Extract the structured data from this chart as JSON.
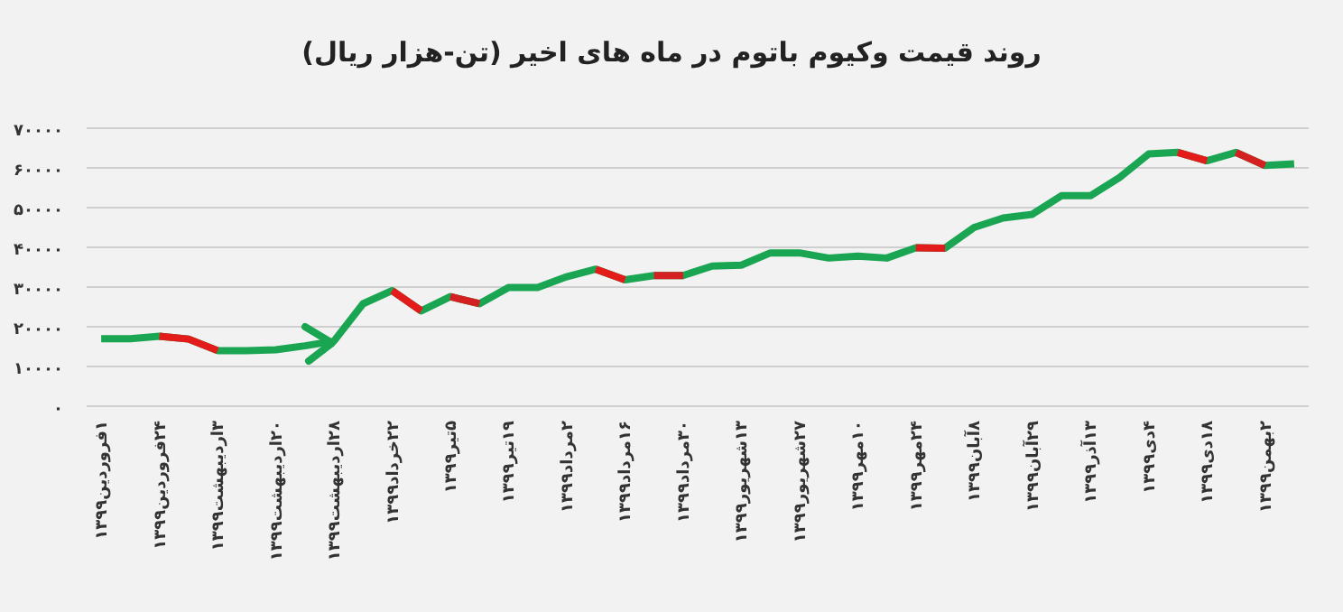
{
  "chart_data": {
    "type": "line",
    "title": "روند قیمت وکیوم باتوم در ماه های اخیر (تن-هزار ریال)",
    "categories": [
      "۱فروردین۱۳۹۹",
      null,
      "۲۴فروردین۱۳۹۹",
      null,
      "۳اردیبهشت۱۳۹۹",
      null,
      "۲۰اردیبهشت۱۳۹۹",
      null,
      "۲۸اردیبهشت۱۳۹۹",
      null,
      "۲۲خرداد۱۳۹۹",
      null,
      "۵تیر۱۳۹۹",
      null,
      "۱۹تیر۱۳۹۹",
      null,
      "۲مرداد۱۳۹۹",
      null,
      "۱۶مرداد۱۳۹۹",
      null,
      "۳۰مرداد۱۳۹۹",
      null,
      "۱۳شهریور۱۳۹۹",
      null,
      "۲۷شهریور۱۳۹۹",
      null,
      "۱۰مهر۱۳۹۹",
      null,
      "۲۴مهر۱۳۹۹",
      null,
      "۸آبان۱۳۹۹",
      null,
      "۲۹آبان۱۳۹۹",
      null,
      "۱۳آذر۱۳۹۹",
      null,
      "۴دی۱۳۹۹",
      null,
      "۱۸دی۱۳۹۹",
      null,
      "۲بهمن۱۳۹۹",
      null
    ],
    "series": [
      {
        "color": "#1aa552",
        "values": [
          17000,
          17000,
          17600,
          16900,
          14000,
          14000,
          14200,
          15200,
          16400,
          25800,
          29100,
          24000,
          27600,
          25800,
          29900,
          29900,
          32600,
          34500,
          31800,
          32900,
          32900,
          35300,
          35500,
          38600,
          38600,
          37300,
          37800,
          37300,
          39900,
          39800,
          45000,
          47400,
          48300,
          53000,
          53000,
          57600,
          63500,
          63900,
          61800,
          63900,
          60600,
          61000
        ]
      },
      {
        "color": "#e31b1b",
        "values": [
          null,
          null,
          17600,
          16900,
          14000,
          null,
          null,
          null,
          null,
          null,
          29100,
          24000,
          null,
          null,
          null,
          null,
          null,
          34500,
          31800,
          null,
          null,
          null,
          null,
          null,
          null,
          null,
          null,
          null,
          39900,
          39800,
          null,
          null,
          null,
          null,
          null,
          null,
          null,
          63900,
          61800,
          null,
          null,
          null
        ]
      },
      {
        "color": "#d42020",
        "values": [
          null,
          null,
          null,
          null,
          null,
          null,
          null,
          null,
          null,
          null,
          null,
          null,
          27600,
          25800,
          null,
          null,
          null,
          null,
          null,
          32900,
          32900,
          null,
          null,
          null,
          null,
          null,
          null,
          null,
          null,
          null,
          null,
          null,
          null,
          null,
          null,
          null,
          null,
          null,
          null,
          63900,
          60600,
          null
        ]
      }
    ],
    "ylim": [
      0,
      70000
    ],
    "yticks": [
      {
        "value": 0,
        "label": "۰"
      },
      {
        "value": 10000,
        "label": "۱۰۰۰۰"
      },
      {
        "value": 20000,
        "label": "۲۰۰۰۰"
      },
      {
        "value": 30000,
        "label": "۳۰۰۰۰"
      },
      {
        "value": 40000,
        "label": "۴۰۰۰۰"
      },
      {
        "value": 50000,
        "label": "۵۰۰۰۰"
      },
      {
        "value": 60000,
        "label": "۶۰۰۰۰"
      },
      {
        "value": 70000,
        "label": "۷۰۰۰۰"
      }
    ],
    "grid": "y",
    "marker": "none",
    "line_style": "solid"
  }
}
